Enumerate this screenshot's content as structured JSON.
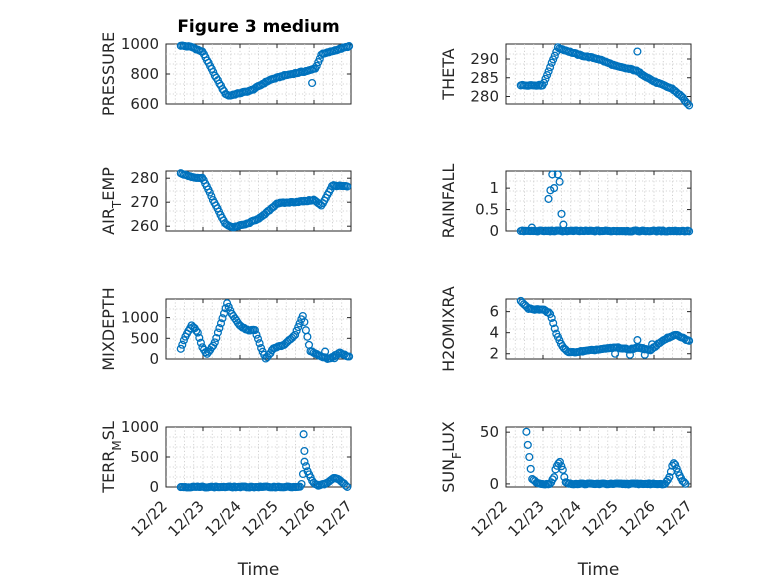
{
  "chart_data": [
    {
      "type": "scatter",
      "title": "Figure 3 medium",
      "ylabel": "PRESSURE",
      "ylim": [
        600,
        1000
      ],
      "yticks": [
        600,
        800,
        1000
      ],
      "xlim": [
        0,
        5
      ],
      "xlabel": "",
      "keypoints": [
        [
          0.4,
          990
        ],
        [
          0.7,
          980
        ],
        [
          1.0,
          945
        ],
        [
          1.3,
          800
        ],
        [
          1.6,
          670
        ],
        [
          1.7,
          655
        ],
        [
          2.3,
          690
        ],
        [
          2.8,
          760
        ],
        [
          3.2,
          790
        ],
        [
          3.6,
          810
        ],
        [
          3.9,
          825
        ],
        [
          4.05,
          840
        ],
        [
          4.2,
          930
        ],
        [
          4.6,
          960
        ],
        [
          4.95,
          985
        ]
      ],
      "outliers": [
        [
          3.95,
          740
        ]
      ]
    },
    {
      "type": "scatter",
      "title": "",
      "ylabel": "THETA",
      "ylim": [
        278,
        294
      ],
      "yticks": [
        280,
        285,
        290
      ],
      "xlim": [
        0,
        5
      ],
      "xlabel": "",
      "keypoints": [
        [
          0.4,
          283
        ],
        [
          1.0,
          283
        ],
        [
          1.2,
          288
        ],
        [
          1.4,
          293
        ],
        [
          2.0,
          291
        ],
        [
          2.5,
          290
        ],
        [
          3.0,
          288
        ],
        [
          3.5,
          287
        ],
        [
          4.0,
          284
        ],
        [
          4.5,
          282
        ],
        [
          4.75,
          280
        ],
        [
          4.95,
          277.5
        ]
      ],
      "outliers": [
        [
          3.55,
          292
        ],
        [
          3.45,
          287
        ]
      ]
    },
    {
      "type": "scatter",
      "title": "",
      "ylabel": "AIR_TEMP",
      "ylim": [
        258,
        283
      ],
      "yticks": [
        260,
        270,
        280
      ],
      "xlim": [
        0,
        5
      ],
      "xlabel": "",
      "keypoints": [
        [
          0.4,
          282
        ],
        [
          0.7,
          280.5
        ],
        [
          1.0,
          280
        ],
        [
          1.3,
          270
        ],
        [
          1.6,
          261
        ],
        [
          1.8,
          259.5
        ],
        [
          2.2,
          261
        ],
        [
          2.6,
          264
        ],
        [
          3.0,
          269.5
        ],
        [
          3.4,
          270
        ],
        [
          3.8,
          270.5
        ],
        [
          4.0,
          271
        ],
        [
          4.2,
          268.5
        ],
        [
          4.5,
          277
        ],
        [
          4.9,
          276.5
        ]
      ],
      "outliers": []
    },
    {
      "type": "scatter",
      "title": "",
      "ylabel": "RAINFALL",
      "ylim": [
        0,
        1.4
      ],
      "yticks": [
        0,
        0.5,
        1
      ],
      "ytickLabels": [
        "0",
        "0.5",
        "1"
      ],
      "xlim": [
        0,
        5
      ],
      "xlabel": "",
      "keypoints": [
        [
          0.4,
          0
        ],
        [
          4.95,
          0
        ]
      ],
      "outliers": [
        [
          0.7,
          0.08
        ],
        [
          1.15,
          0.75
        ],
        [
          1.2,
          0.95
        ],
        [
          1.25,
          1.32
        ],
        [
          1.3,
          1.0
        ],
        [
          1.4,
          1.32
        ],
        [
          1.45,
          1.15
        ],
        [
          1.5,
          0.4
        ],
        [
          1.55,
          0.15
        ]
      ]
    },
    {
      "type": "scatter",
      "title": "",
      "ylabel": "MIXDEPTH",
      "ylim": [
        0,
        1450
      ],
      "yticks": [
        0,
        500,
        1000
      ],
      "xlim": [
        0,
        5
      ],
      "xlabel": "",
      "keypoints": [
        [
          0.4,
          250
        ],
        [
          0.55,
          600
        ],
        [
          0.7,
          820
        ],
        [
          0.85,
          650
        ],
        [
          1.0,
          250
        ],
        [
          1.1,
          120
        ],
        [
          1.3,
          350
        ],
        [
          1.5,
          900
        ],
        [
          1.65,
          1350
        ],
        [
          1.8,
          1050
        ],
        [
          2.0,
          800
        ],
        [
          2.2,
          700
        ],
        [
          2.4,
          700
        ],
        [
          2.6,
          200
        ],
        [
          2.7,
          0
        ],
        [
          2.9,
          250
        ],
        [
          3.2,
          350
        ],
        [
          3.5,
          600
        ],
        [
          3.7,
          1050
        ],
        [
          3.9,
          200
        ],
        [
          4.1,
          100
        ],
        [
          4.4,
          0
        ],
        [
          4.7,
          150
        ],
        [
          4.95,
          50
        ]
      ],
      "outliers": [
        [
          4.3,
          180
        ],
        [
          4.55,
          20
        ]
      ]
    },
    {
      "type": "scatter",
      "title": "",
      "ylabel": "H2OMIXRA",
      "ylim": [
        1.5,
        7.2
      ],
      "yticks": [
        2,
        4,
        6
      ],
      "xlim": [
        0,
        5
      ],
      "xlabel": "",
      "keypoints": [
        [
          0.4,
          7
        ],
        [
          0.6,
          6.3
        ],
        [
          0.8,
          6.2
        ],
        [
          1.0,
          6.2
        ],
        [
          1.2,
          5.8
        ],
        [
          1.35,
          4
        ],
        [
          1.5,
          2.8
        ],
        [
          1.7,
          2.1
        ],
        [
          2.0,
          2.2
        ],
        [
          2.5,
          2.4
        ],
        [
          3.0,
          2.6
        ],
        [
          3.3,
          2.4
        ],
        [
          3.6,
          2.6
        ],
        [
          3.9,
          2.3
        ],
        [
          4.1,
          2.9
        ],
        [
          4.3,
          3.4
        ],
        [
          4.6,
          3.8
        ],
        [
          4.95,
          3.2
        ]
      ],
      "outliers": [
        [
          3.35,
          1.9
        ],
        [
          3.55,
          3.3
        ],
        [
          3.75,
          1.9
        ],
        [
          3.95,
          2.9
        ],
        [
          2.95,
          2.0
        ]
      ]
    },
    {
      "type": "scatter",
      "title": "",
      "ylabel": "TERR_MSL",
      "ylim": [
        0,
        1000
      ],
      "yticks": [
        0,
        500,
        1000
      ],
      "xlim": [
        0,
        5
      ],
      "xlabel": "Time",
      "xtickLabels": [
        "12/22",
        "12/23",
        "12/24",
        "12/25",
        "12/26",
        "12/27"
      ],
      "keypoints": [
        [
          0.4,
          0
        ],
        [
          3.5,
          0
        ],
        [
          3.65,
          0
        ],
        [
          3.7,
          200
        ],
        [
          3.75,
          450
        ],
        [
          3.8,
          300
        ],
        [
          3.95,
          100
        ],
        [
          4.1,
          20
        ],
        [
          4.3,
          50
        ],
        [
          4.55,
          150
        ],
        [
          4.7,
          120
        ],
        [
          4.8,
          60
        ],
        [
          4.9,
          0
        ]
      ],
      "outliers": [
        [
          3.72,
          880
        ],
        [
          3.74,
          600
        ]
      ]
    },
    {
      "type": "scatter",
      "title": "",
      "ylabel": "SUN_FLUX",
      "ylim": [
        -3,
        55
      ],
      "yticks": [
        0,
        50
      ],
      "xlim": [
        0,
        5
      ],
      "xlabel": "Time",
      "xtickLabels": [
        "12/22",
        "12/23",
        "12/24",
        "12/25",
        "12/26",
        "12/27"
      ],
      "keypoints": [
        [
          0.55,
          50
        ],
        [
          0.6,
          35
        ],
        [
          0.65,
          20
        ],
        [
          0.7,
          5
        ],
        [
          0.8,
          2
        ],
        [
          0.9,
          0
        ],
        [
          1.2,
          0
        ],
        [
          1.3,
          7
        ],
        [
          1.35,
          16
        ],
        [
          1.45,
          22
        ],
        [
          1.55,
          12
        ],
        [
          1.6,
          2
        ],
        [
          1.7,
          0
        ],
        [
          4.3,
          0
        ],
        [
          4.4,
          5
        ],
        [
          4.5,
          18
        ],
        [
          4.55,
          21
        ],
        [
          4.65,
          12
        ],
        [
          4.75,
          4
        ],
        [
          4.85,
          0
        ]
      ],
      "outliers": []
    }
  ]
}
